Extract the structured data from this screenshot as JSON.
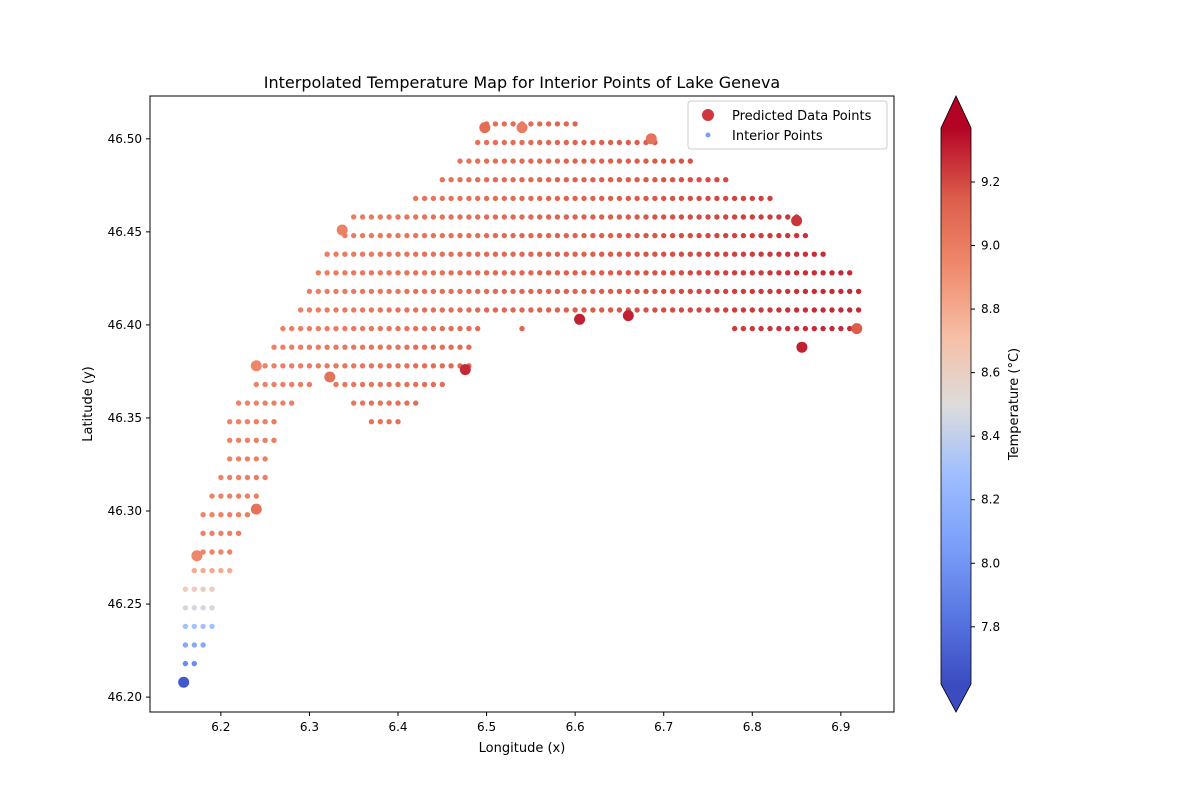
{
  "chart_data": {
    "type": "scatter",
    "title": "Interpolated Temperature Map for Interior Points of Lake Geneva",
    "xlabel": "Longitude (x)",
    "ylabel": "Latitude (y)",
    "xlim": [
      6.12,
      6.96
    ],
    "ylim": [
      46.192,
      46.523
    ],
    "xticks": [
      "6.1",
      "6.2",
      "6.3",
      "6.4",
      "6.5",
      "6.6",
      "6.7",
      "6.8",
      "6.9"
    ],
    "yticks": [
      "46.20",
      "46.25",
      "46.30",
      "46.35",
      "46.40",
      "46.45",
      "46.50"
    ],
    "grid": false,
    "legend": {
      "placement": "top-right",
      "entries": [
        "Predicted Data Points",
        "Interior Points"
      ]
    },
    "colorbar": {
      "label": "Temperature (°C)",
      "colormap": "coolwarm",
      "range": [
        7.62,
        9.37
      ],
      "ticks": [
        "7.8",
        "8.0",
        "8.2",
        "8.4",
        "8.6",
        "8.8",
        "9.0",
        "9.2"
      ],
      "extend": "both"
    },
    "interior_grid": {
      "spacing_x": 0.01,
      "spacing_y": 0.01,
      "rows": [
        {
          "y": 46.218,
          "x": [
            6.16,
            6.17
          ]
        },
        {
          "y": 46.228,
          "x": [
            6.16,
            6.17,
            6.18
          ]
        },
        {
          "y": 46.238,
          "x": [
            6.16,
            6.17,
            6.18,
            6.19
          ]
        },
        {
          "y": 46.248,
          "x": [
            6.16,
            6.17,
            6.18,
            6.19
          ]
        },
        {
          "y": 46.258,
          "x": [
            6.16,
            6.17,
            6.18,
            6.19
          ]
        },
        {
          "y": 46.268,
          "x": [
            6.17,
            6.18,
            6.19,
            6.2,
            6.21
          ]
        },
        {
          "y": 46.278,
          "x": [
            6.18,
            6.19,
            6.2,
            6.21
          ]
        },
        {
          "y": 46.288,
          "x": [
            6.18,
            6.19,
            6.2,
            6.21,
            6.22
          ]
        },
        {
          "y": 46.298,
          "x": [
            6.18,
            6.19,
            6.2,
            6.21,
            6.22,
            6.23
          ]
        },
        {
          "y": 46.308,
          "x": [
            6.19,
            6.2,
            6.21,
            6.22,
            6.23,
            6.24
          ]
        },
        {
          "y": 46.318,
          "x": [
            6.2,
            6.21,
            6.22,
            6.23,
            6.24,
            6.25
          ]
        },
        {
          "y": 46.328,
          "x": [
            6.21,
            6.22,
            6.23,
            6.24,
            6.25
          ]
        },
        {
          "y": 46.338,
          "x": [
            6.21,
            6.22,
            6.23,
            6.24,
            6.25,
            6.26
          ]
        },
        {
          "y": 46.348,
          "x": [
            6.21,
            6.22,
            6.23,
            6.24,
            6.25,
            6.26,
            6.37,
            6.38,
            6.39,
            6.4
          ]
        },
        {
          "y": 46.358,
          "x": [
            6.22,
            6.23,
            6.24,
            6.25,
            6.26,
            6.27,
            6.28,
            6.35,
            6.36,
            6.37,
            6.38,
            6.39,
            6.4,
            6.41,
            6.42
          ]
        },
        {
          "y": 46.368,
          "x": [
            6.24,
            6.25,
            6.26,
            6.27,
            6.28,
            6.29,
            6.3,
            6.33,
            6.34,
            6.35,
            6.36,
            6.37,
            6.38,
            6.39,
            6.4,
            6.41,
            6.42,
            6.43,
            6.44,
            6.45
          ]
        },
        {
          "y": 46.378,
          "x": [
            6.25,
            6.26,
            6.27,
            6.28,
            6.29,
            6.3,
            6.31,
            6.32,
            6.33,
            6.34,
            6.35,
            6.36,
            6.37,
            6.38,
            6.39,
            6.4,
            6.41,
            6.42,
            6.43,
            6.44,
            6.45,
            6.46,
            6.47,
            6.48
          ]
        },
        {
          "y": 46.388,
          "x": [
            6.26,
            6.27,
            6.28,
            6.29,
            6.3,
            6.31,
            6.32,
            6.33,
            6.34,
            6.35,
            6.36,
            6.37,
            6.38,
            6.39,
            6.4,
            6.41,
            6.42,
            6.43,
            6.44,
            6.45,
            6.46,
            6.47,
            6.48
          ]
        },
        {
          "y": 46.398,
          "x": [
            6.27,
            6.28,
            6.29,
            6.3,
            6.31,
            6.32,
            6.33,
            6.34,
            6.35,
            6.36,
            6.37,
            6.38,
            6.39,
            6.4,
            6.41,
            6.42,
            6.43,
            6.44,
            6.45,
            6.46,
            6.47,
            6.48,
            6.49,
            6.54,
            6.78,
            6.79,
            6.8,
            6.81,
            6.82,
            6.83,
            6.84,
            6.85,
            6.86,
            6.87,
            6.88,
            6.89,
            6.9,
            6.91
          ]
        },
        {
          "y": 46.408,
          "x": [
            6.29,
            6.3,
            6.31,
            6.32,
            6.33,
            6.34,
            6.35,
            6.36,
            6.37,
            6.38,
            6.39,
            6.4,
            6.41,
            6.42,
            6.43,
            6.44,
            6.45,
            6.46,
            6.47,
            6.48,
            6.49,
            6.5,
            6.51,
            6.52,
            6.53,
            6.54,
            6.55,
            6.56,
            6.57,
            6.58,
            6.59,
            6.6,
            6.61,
            6.62,
            6.63,
            6.64,
            6.65,
            6.66,
            6.67,
            6.68,
            6.69,
            6.7,
            6.71,
            6.72,
            6.73,
            6.74,
            6.75,
            6.76,
            6.77,
            6.78,
            6.79,
            6.8,
            6.81,
            6.82,
            6.83,
            6.84,
            6.85,
            6.86,
            6.87,
            6.88,
            6.89,
            6.9,
            6.91,
            6.92
          ]
        },
        {
          "y": 46.418,
          "x": [
            6.3,
            6.31,
            6.32,
            6.33,
            6.34,
            6.35,
            6.36,
            6.37,
            6.38,
            6.39,
            6.4,
            6.41,
            6.42,
            6.43,
            6.44,
            6.45,
            6.46,
            6.47,
            6.48,
            6.49,
            6.5,
            6.51,
            6.52,
            6.53,
            6.54,
            6.55,
            6.56,
            6.57,
            6.58,
            6.59,
            6.6,
            6.61,
            6.62,
            6.63,
            6.64,
            6.65,
            6.66,
            6.67,
            6.68,
            6.69,
            6.7,
            6.71,
            6.72,
            6.73,
            6.74,
            6.75,
            6.76,
            6.77,
            6.78,
            6.79,
            6.8,
            6.81,
            6.82,
            6.83,
            6.84,
            6.85,
            6.86,
            6.87,
            6.88,
            6.89,
            6.9,
            6.91,
            6.92
          ]
        },
        {
          "y": 46.428,
          "x": [
            6.31,
            6.32,
            6.33,
            6.34,
            6.35,
            6.36,
            6.37,
            6.38,
            6.39,
            6.4,
            6.41,
            6.42,
            6.43,
            6.44,
            6.45,
            6.46,
            6.47,
            6.48,
            6.49,
            6.5,
            6.51,
            6.52,
            6.53,
            6.54,
            6.55,
            6.56,
            6.57,
            6.58,
            6.59,
            6.6,
            6.61,
            6.62,
            6.63,
            6.64,
            6.65,
            6.66,
            6.67,
            6.68,
            6.69,
            6.7,
            6.71,
            6.72,
            6.73,
            6.74,
            6.75,
            6.76,
            6.77,
            6.78,
            6.79,
            6.8,
            6.81,
            6.82,
            6.83,
            6.84,
            6.85,
            6.86,
            6.87,
            6.88,
            6.89,
            6.9,
            6.91
          ]
        },
        {
          "y": 46.438,
          "x": [
            6.32,
            6.33,
            6.34,
            6.35,
            6.36,
            6.37,
            6.38,
            6.39,
            6.4,
            6.41,
            6.42,
            6.43,
            6.44,
            6.45,
            6.46,
            6.47,
            6.48,
            6.49,
            6.5,
            6.51,
            6.52,
            6.53,
            6.54,
            6.55,
            6.56,
            6.57,
            6.58,
            6.59,
            6.6,
            6.61,
            6.62,
            6.63,
            6.64,
            6.65,
            6.66,
            6.67,
            6.68,
            6.69,
            6.7,
            6.71,
            6.72,
            6.73,
            6.74,
            6.75,
            6.76,
            6.77,
            6.78,
            6.79,
            6.8,
            6.81,
            6.82,
            6.83,
            6.84,
            6.85,
            6.86,
            6.87,
            6.88
          ]
        },
        {
          "y": 46.448,
          "x": [
            6.34,
            6.35,
            6.36,
            6.37,
            6.38,
            6.39,
            6.4,
            6.41,
            6.42,
            6.43,
            6.44,
            6.45,
            6.46,
            6.47,
            6.48,
            6.49,
            6.5,
            6.51,
            6.52,
            6.53,
            6.54,
            6.55,
            6.56,
            6.57,
            6.58,
            6.59,
            6.6,
            6.61,
            6.62,
            6.63,
            6.64,
            6.65,
            6.66,
            6.67,
            6.68,
            6.69,
            6.7,
            6.71,
            6.72,
            6.73,
            6.74,
            6.75,
            6.76,
            6.77,
            6.78,
            6.79,
            6.8,
            6.81,
            6.82,
            6.83,
            6.84,
            6.85,
            6.86
          ]
        },
        {
          "y": 46.458,
          "x": [
            6.35,
            6.36,
            6.37,
            6.38,
            6.39,
            6.4,
            6.41,
            6.42,
            6.43,
            6.44,
            6.45,
            6.46,
            6.47,
            6.48,
            6.49,
            6.5,
            6.51,
            6.52,
            6.53,
            6.54,
            6.55,
            6.56,
            6.57,
            6.58,
            6.59,
            6.6,
            6.61,
            6.62,
            6.63,
            6.64,
            6.65,
            6.66,
            6.67,
            6.68,
            6.69,
            6.7,
            6.71,
            6.72,
            6.73,
            6.74,
            6.75,
            6.76,
            6.77,
            6.78,
            6.79,
            6.8,
            6.81,
            6.82,
            6.83,
            6.84,
            6.85
          ]
        },
        {
          "y": 46.468,
          "x": [
            6.42,
            6.43,
            6.44,
            6.45,
            6.46,
            6.47,
            6.48,
            6.49,
            6.5,
            6.51,
            6.52,
            6.53,
            6.54,
            6.55,
            6.56,
            6.57,
            6.58,
            6.59,
            6.6,
            6.61,
            6.62,
            6.63,
            6.64,
            6.65,
            6.66,
            6.67,
            6.68,
            6.69,
            6.7,
            6.71,
            6.72,
            6.73,
            6.74,
            6.75,
            6.76,
            6.77,
            6.78,
            6.79,
            6.8,
            6.81,
            6.82
          ]
        },
        {
          "y": 46.478,
          "x": [
            6.45,
            6.46,
            6.47,
            6.48,
            6.49,
            6.5,
            6.51,
            6.52,
            6.53,
            6.54,
            6.55,
            6.56,
            6.57,
            6.58,
            6.59,
            6.6,
            6.61,
            6.62,
            6.63,
            6.64,
            6.65,
            6.66,
            6.67,
            6.68,
            6.69,
            6.7,
            6.71,
            6.72,
            6.73,
            6.74,
            6.75,
            6.76,
            6.77
          ]
        },
        {
          "y": 46.488,
          "x": [
            6.47,
            6.48,
            6.49,
            6.5,
            6.51,
            6.52,
            6.53,
            6.54,
            6.55,
            6.56,
            6.57,
            6.58,
            6.59,
            6.6,
            6.61,
            6.62,
            6.63,
            6.64,
            6.65,
            6.66,
            6.67,
            6.68,
            6.69,
            6.7,
            6.71,
            6.72,
            6.73
          ]
        },
        {
          "y": 46.498,
          "x": [
            6.49,
            6.5,
            6.51,
            6.52,
            6.53,
            6.54,
            6.55,
            6.56,
            6.57,
            6.58,
            6.59,
            6.6,
            6.61,
            6.62,
            6.63,
            6.64,
            6.65,
            6.66,
            6.67,
            6.68,
            6.69
          ]
        },
        {
          "y": 46.508,
          "x": [
            6.5,
            6.51,
            6.52,
            6.53,
            6.54,
            6.55,
            6.56,
            6.57,
            6.58,
            6.59,
            6.6
          ]
        }
      ]
    },
    "predicted_points": [
      {
        "x": 6.158,
        "y": 46.208,
        "temp": 7.68
      },
      {
        "x": 6.173,
        "y": 46.276,
        "temp": 8.95
      },
      {
        "x": 6.24,
        "y": 46.301,
        "temp": 9.05
      },
      {
        "x": 6.24,
        "y": 46.378,
        "temp": 8.95
      },
      {
        "x": 6.323,
        "y": 46.372,
        "temp": 9.05
      },
      {
        "x": 6.337,
        "y": 46.451,
        "temp": 8.98
      },
      {
        "x": 6.476,
        "y": 46.376,
        "temp": 9.28
      },
      {
        "x": 6.498,
        "y": 46.506,
        "temp": 9.08
      },
      {
        "x": 6.54,
        "y": 46.506,
        "temp": 9.0
      },
      {
        "x": 6.605,
        "y": 46.403,
        "temp": 9.3
      },
      {
        "x": 6.66,
        "y": 46.405,
        "temp": 9.3
      },
      {
        "x": 6.686,
        "y": 46.5,
        "temp": 9.05
      },
      {
        "x": 6.85,
        "y": 46.456,
        "temp": 9.25
      },
      {
        "x": 6.856,
        "y": 46.388,
        "temp": 9.3
      },
      {
        "x": 6.918,
        "y": 46.398,
        "temp": 9.15
      }
    ]
  }
}
